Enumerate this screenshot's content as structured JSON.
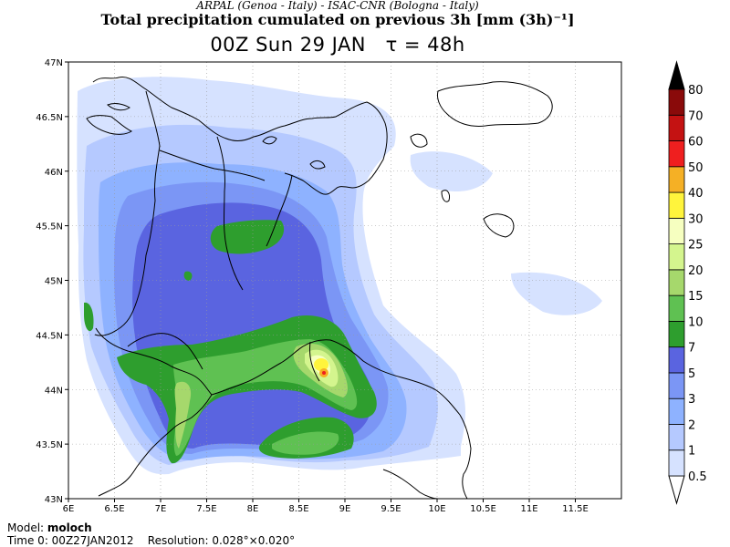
{
  "header": {
    "credits": "ARPAL (Genoa - Italy)  -  ISAC-CNR (Bologna - Italy)",
    "title": "Total precipitation cumulated on previous 3h [mm (3h)⁻¹]",
    "valid_time": "00Z Sun 29 JAN",
    "tau": "τ = 48h"
  },
  "map": {
    "lat_labels": [
      "47N",
      "46.5N",
      "46N",
      "45.5N",
      "45N",
      "44.5N",
      "44N",
      "43.5N",
      "43N"
    ],
    "lon_labels": [
      "6E",
      "6.5E",
      "7E",
      "7.5E",
      "8E",
      "8.5E",
      "9E",
      "9.5E",
      "10E",
      "10.5E",
      "11E",
      "11.5E"
    ],
    "lat_range": [
      43,
      47
    ],
    "lon_range": [
      6,
      12
    ],
    "gridlines": true,
    "gridline_style": "dotted"
  },
  "colorbar": {
    "units": "mm (3h)⁻¹",
    "levels": [
      "0.5",
      "1",
      "2",
      "3",
      "5",
      "7",
      "10",
      "15",
      "20",
      "25",
      "30",
      "40",
      "50",
      "60",
      "70",
      "80"
    ],
    "colors": [
      "#ffffff",
      "#d6e2ff",
      "#b5c9ff",
      "#8eb2ff",
      "#7b96f5",
      "#5a64e0",
      "#2e9e2e",
      "#5fc152",
      "#a6d86c",
      "#d4f58e",
      "#f6ffc0",
      "#fff43c",
      "#f5b025",
      "#ef1f1f",
      "#c41212",
      "#8a0a0a",
      "#000000"
    ],
    "extends": "both"
  },
  "footer": {
    "model_label": "Model:",
    "model_name": "moloch",
    "time0": "Time 0: 00Z27JAN2012",
    "resolution": "Resolution: 0.028°×0.020°"
  }
}
